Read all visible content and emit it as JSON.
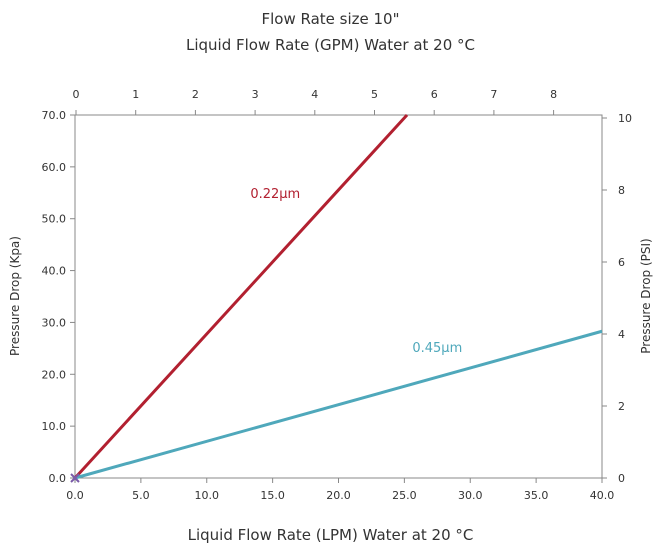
{
  "chart_data": {
    "type": "line",
    "title": "Flow Rate size 10\"",
    "subtitle": "Liquid Flow Rate (GPM) Water at 20 °C",
    "xlabel": "Liquid Flow Rate (LPM) Water at 20 °C",
    "ylabel": "Pressure Drop (Kpa)",
    "y2label": "Pressure Drop (PSI)",
    "xlim": [
      0,
      40
    ],
    "ylim": [
      0,
      70
    ],
    "x_ticks": [
      "0.0",
      "5.0",
      "10.0",
      "15.0",
      "20.0",
      "25.0",
      "30.0",
      "35.0",
      "40.0"
    ],
    "y_ticks": [
      "0.0",
      "10.0",
      "20.0",
      "30.0",
      "40.0",
      "50.0",
      "60.0",
      "70.0"
    ],
    "x2_ticks": [
      "0",
      "1",
      "2",
      "3",
      "4",
      "5",
      "6",
      "7",
      "8"
    ],
    "y2_ticks": [
      "0",
      "2",
      "4",
      "6",
      "8",
      "10"
    ],
    "grid": false,
    "series": [
      {
        "name": "0.22μm",
        "color": "#b22030",
        "x": [
          0,
          25.2
        ],
        "y": [
          0,
          70
        ]
      },
      {
        "name": "0.45μm",
        "color": "#4fa8bb",
        "x": [
          0,
          40
        ],
        "y": [
          0,
          28.3
        ]
      }
    ]
  }
}
